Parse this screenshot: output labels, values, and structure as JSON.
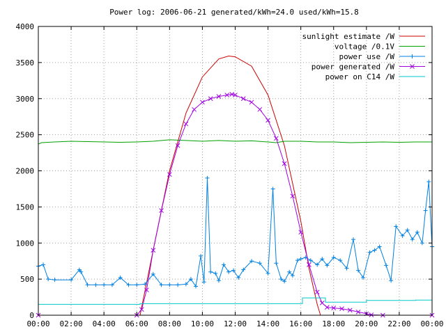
{
  "chart_data": {
    "type": "line",
    "title": "Power log: 2006-06-21 generated/kWh=24.0 used/kWh=15.8",
    "xlabel": "",
    "ylabel": "",
    "x_unit": "hours",
    "xlim": [
      0,
      24
    ],
    "ylim": [
      0,
      4000
    ],
    "x_ticks": [
      0,
      2,
      4,
      6,
      8,
      10,
      12,
      14,
      16,
      18,
      20,
      22,
      24
    ],
    "x_tick_labels": [
      "00:00",
      "02:00",
      "04:00",
      "06:00",
      "08:00",
      "10:00",
      "12:00",
      "14:00",
      "16:00",
      "18:00",
      "20:00",
      "22:00",
      "00:00"
    ],
    "y_ticks": [
      0,
      500,
      1000,
      1500,
      2000,
      2500,
      3000,
      3500,
      4000
    ],
    "y_tick_labels": [
      "0",
      "500",
      "1000",
      "1500",
      "2000",
      "2500",
      "3000",
      "3500",
      "4000"
    ],
    "grid": true,
    "legend_position": "top-right",
    "series": [
      {
        "name": "sunlight estimate /W",
        "color": "#cc0000",
        "style": "line",
        "x": [
          6.2,
          7,
          8,
          9,
          10,
          11,
          11.6,
          12,
          13,
          14,
          15,
          16,
          16.5,
          17,
          17.2
        ],
        "y": [
          0,
          900,
          2000,
          2800,
          3300,
          3550,
          3590,
          3580,
          3450,
          3050,
          2350,
          1300,
          650,
          150,
          0
        ]
      },
      {
        "name": "voltage /0.1V",
        "color": "#00a000",
        "style": "line",
        "x": [
          0,
          0.2,
          1,
          2,
          3,
          4,
          5,
          6,
          7,
          8,
          9,
          10,
          11,
          12,
          13,
          14,
          14.5,
          15,
          16,
          17,
          18,
          19,
          20,
          21,
          22,
          23,
          24
        ],
        "y": [
          2370,
          2390,
          2400,
          2410,
          2405,
          2400,
          2395,
          2400,
          2410,
          2430,
          2420,
          2410,
          2420,
          2410,
          2415,
          2400,
          2390,
          2410,
          2410,
          2400,
          2400,
          2390,
          2395,
          2400,
          2395,
          2400,
          2400
        ]
      },
      {
        "name": "power use /W",
        "color": "#0080e0",
        "style": "linepoints",
        "marker": "plus",
        "x": [
          0,
          0.3,
          0.6,
          1,
          2,
          2.5,
          2.6,
          3,
          3.5,
          4,
          4.5,
          5,
          5.5,
          6,
          6.5,
          7,
          7.5,
          8,
          8.5,
          9,
          9.3,
          9.6,
          9.9,
          10.1,
          10.3,
          10.5,
          10.8,
          11,
          11.3,
          11.6,
          11.9,
          12.2,
          12.5,
          13,
          13.5,
          14,
          14.3,
          14.5,
          14.8,
          15,
          15.3,
          15.5,
          15.8,
          16,
          16.3,
          16.6,
          17,
          17.3,
          17.6,
          18,
          18.4,
          18.8,
          19.2,
          19.5,
          19.8,
          20.2,
          20.5,
          20.8,
          21.2,
          21.5,
          21.8,
          22.2,
          22.5,
          22.8,
          23.1,
          23.4,
          23.6,
          23.8,
          24
        ],
        "y": [
          680,
          700,
          500,
          490,
          490,
          630,
          600,
          420,
          420,
          420,
          420,
          520,
          420,
          420,
          430,
          570,
          420,
          420,
          420,
          430,
          500,
          400,
          820,
          460,
          1900,
          600,
          580,
          480,
          700,
          600,
          620,
          520,
          630,
          750,
          720,
          580,
          1750,
          720,
          500,
          470,
          600,
          550,
          760,
          780,
          800,
          760,
          700,
          780,
          690,
          800,
          760,
          650,
          1050,
          620,
          520,
          870,
          900,
          950,
          690,
          480,
          1230,
          1100,
          1180,
          1050,
          1150,
          1000,
          1450,
          1850,
          950
        ]
      },
      {
        "name": "power generated /W",
        "color": "#a000e0",
        "style": "linepoints",
        "marker": "cross",
        "x": [
          0,
          6.0,
          6.3,
          6.6,
          7.0,
          7.5,
          8.0,
          8.5,
          9.0,
          9.5,
          10.0,
          10.5,
          11.0,
          11.5,
          11.8,
          12.0,
          12.5,
          13.0,
          13.5,
          14.0,
          14.5,
          15.0,
          15.5,
          16.0,
          16.5,
          17.0,
          17.3,
          17.6,
          18.0,
          18.5,
          19.0,
          19.5,
          20.0,
          20.3,
          21.0,
          24.0
        ],
        "y": [
          0,
          0,
          80,
          350,
          900,
          1450,
          1950,
          2350,
          2650,
          2850,
          2950,
          3000,
          3030,
          3050,
          3060,
          3050,
          3000,
          2950,
          2850,
          2700,
          2450,
          2100,
          1650,
          1150,
          700,
          320,
          170,
          110,
          100,
          90,
          70,
          45,
          20,
          5,
          0,
          0
        ]
      },
      {
        "name": "power on C14 /W",
        "color": "#00c8c8",
        "style": "line",
        "x": [
          0,
          6.2,
          6.2,
          16.1,
          16.1,
          17.5,
          17.5,
          20.0,
          20.0,
          23.0,
          23.0,
          24.0
        ],
        "y": [
          150,
          150,
          160,
          160,
          240,
          240,
          180,
          180,
          205,
          205,
          210,
          210
        ]
      }
    ]
  }
}
